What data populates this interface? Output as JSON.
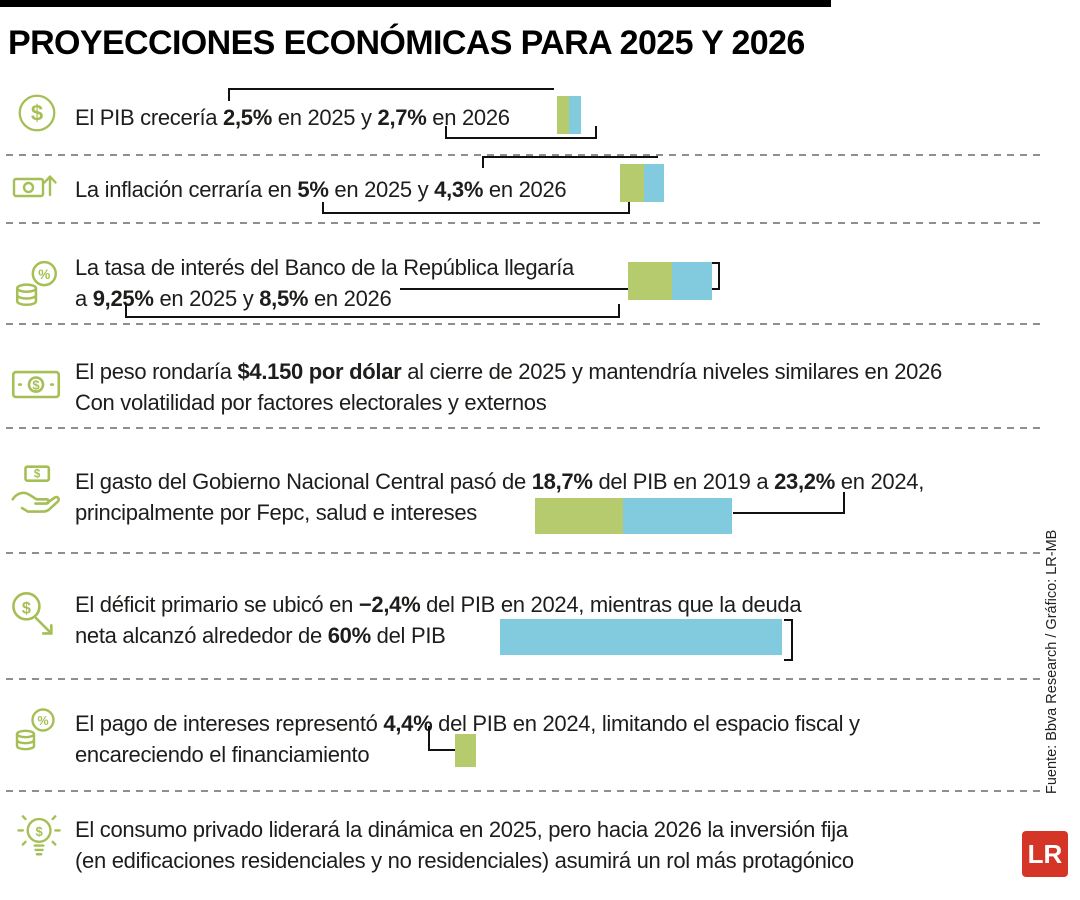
{
  "title": "PROYECCIONES ECONÓMICAS PARA 2025 Y 2026",
  "source_credit": "Fuente: Bbva Research / Gráfico: LR-MB",
  "logo_text": "LR",
  "colors": {
    "bar_green": "#b6ca6e",
    "bar_blue": "#82cadd",
    "icon_green": "#a5bf55",
    "logo_red": "#d43527",
    "divider_gray": "#8f8f8f",
    "callout_black": "#111111"
  },
  "rows": [
    {
      "icon": "coin-dollar-icon",
      "segments": [
        "El PIB crecería ",
        "2,5%",
        " en 2025 y ",
        "2,7%",
        " en 2026"
      ]
    },
    {
      "icon": "cash-growth-icon",
      "segments": [
        "La inflación cerraría en ",
        "5%",
        " en 2025 y ",
        "4,3%",
        " en 2026"
      ]
    },
    {
      "icon": "coins-percent-icon",
      "segments": [
        "La tasa de interés del Banco de la República llegaría",
        "a ",
        "9,25%",
        " en 2025 y ",
        "8,5%",
        " en 2026"
      ]
    },
    {
      "icon": "banknote-icon",
      "segments": [
        "El peso rondaría ",
        "$4.150 por dólar",
        " al cierre de 2025 y mantendría niveles similares en 2026",
        "Con volatilidad por factores electorales y externos"
      ]
    },
    {
      "icon": "hand-money-icon",
      "segments": [
        "El gasto del Gobierno Nacional Central pasó de ",
        "18,7%",
        " del PIB en 2019 a ",
        "23,2%",
        " en 2024,",
        "principalmente por Fepc, salud e intereses"
      ]
    },
    {
      "icon": "dollar-decline-icon",
      "segments": [
        "El déficit primario se ubicó en ",
        "−2,4%",
        " del PIB en 2024, mientras que la deuda",
        "neta alcanzó alrededor de ",
        "60%",
        " del PIB"
      ]
    },
    {
      "icon": "coins-interest-icon",
      "segments": [
        "El pago de intereses representó ",
        "4,4%",
        " del PIB en 2024, limitando el espacio fiscal y",
        "encareciendo el financiamiento"
      ]
    },
    {
      "icon": "idea-bulb-icon",
      "segments": [
        "El consumo privado liderará la dinámica en 2025, pero hacia 2026 la inversión fija",
        "(en edificaciones residenciales y no residenciales) asumirá un rol más protagónico"
      ]
    }
  ],
  "chart_data": [
    {
      "type": "bar",
      "title": "Crecimiento del PIB (%)",
      "categories": [
        "2025",
        "2026"
      ],
      "values": [
        2.5,
        2.7
      ],
      "colors": [
        "#b6ca6e",
        "#82cadd"
      ],
      "legend_position": "none",
      "grid": false
    },
    {
      "type": "bar",
      "title": "Inflación fin de año (%)",
      "categories": [
        "2025",
        "2026"
      ],
      "values": [
        5,
        4.3
      ],
      "colors": [
        "#b6ca6e",
        "#82cadd"
      ],
      "legend_position": "none",
      "grid": false
    },
    {
      "type": "bar",
      "title": "Tasa de interés del Banco de la República (%)",
      "categories": [
        "2025",
        "2026"
      ],
      "values": [
        9.25,
        8.5
      ],
      "colors": [
        "#b6ca6e",
        "#82cadd"
      ],
      "legend_position": "none",
      "grid": false
    },
    {
      "type": "bar",
      "title": "Gasto del Gobierno Nacional Central (% del PIB)",
      "categories": [
        "2019",
        "2024"
      ],
      "values": [
        18.7,
        23.2
      ],
      "colors": [
        "#b6ca6e",
        "#82cadd"
      ],
      "legend_position": "none",
      "grid": false
    },
    {
      "type": "bar",
      "title": "Deuda neta (% del PIB, 2024)",
      "categories": [
        "2024"
      ],
      "values": [
        60
      ],
      "colors": [
        "#82cadd"
      ],
      "legend_position": "none",
      "grid": false
    },
    {
      "type": "bar",
      "title": "Pago de intereses (% del PIB, 2024)",
      "categories": [
        "2024"
      ],
      "values": [
        4.4
      ],
      "colors": [
        "#b6ca6e"
      ],
      "legend_position": "none",
      "grid": false
    }
  ]
}
